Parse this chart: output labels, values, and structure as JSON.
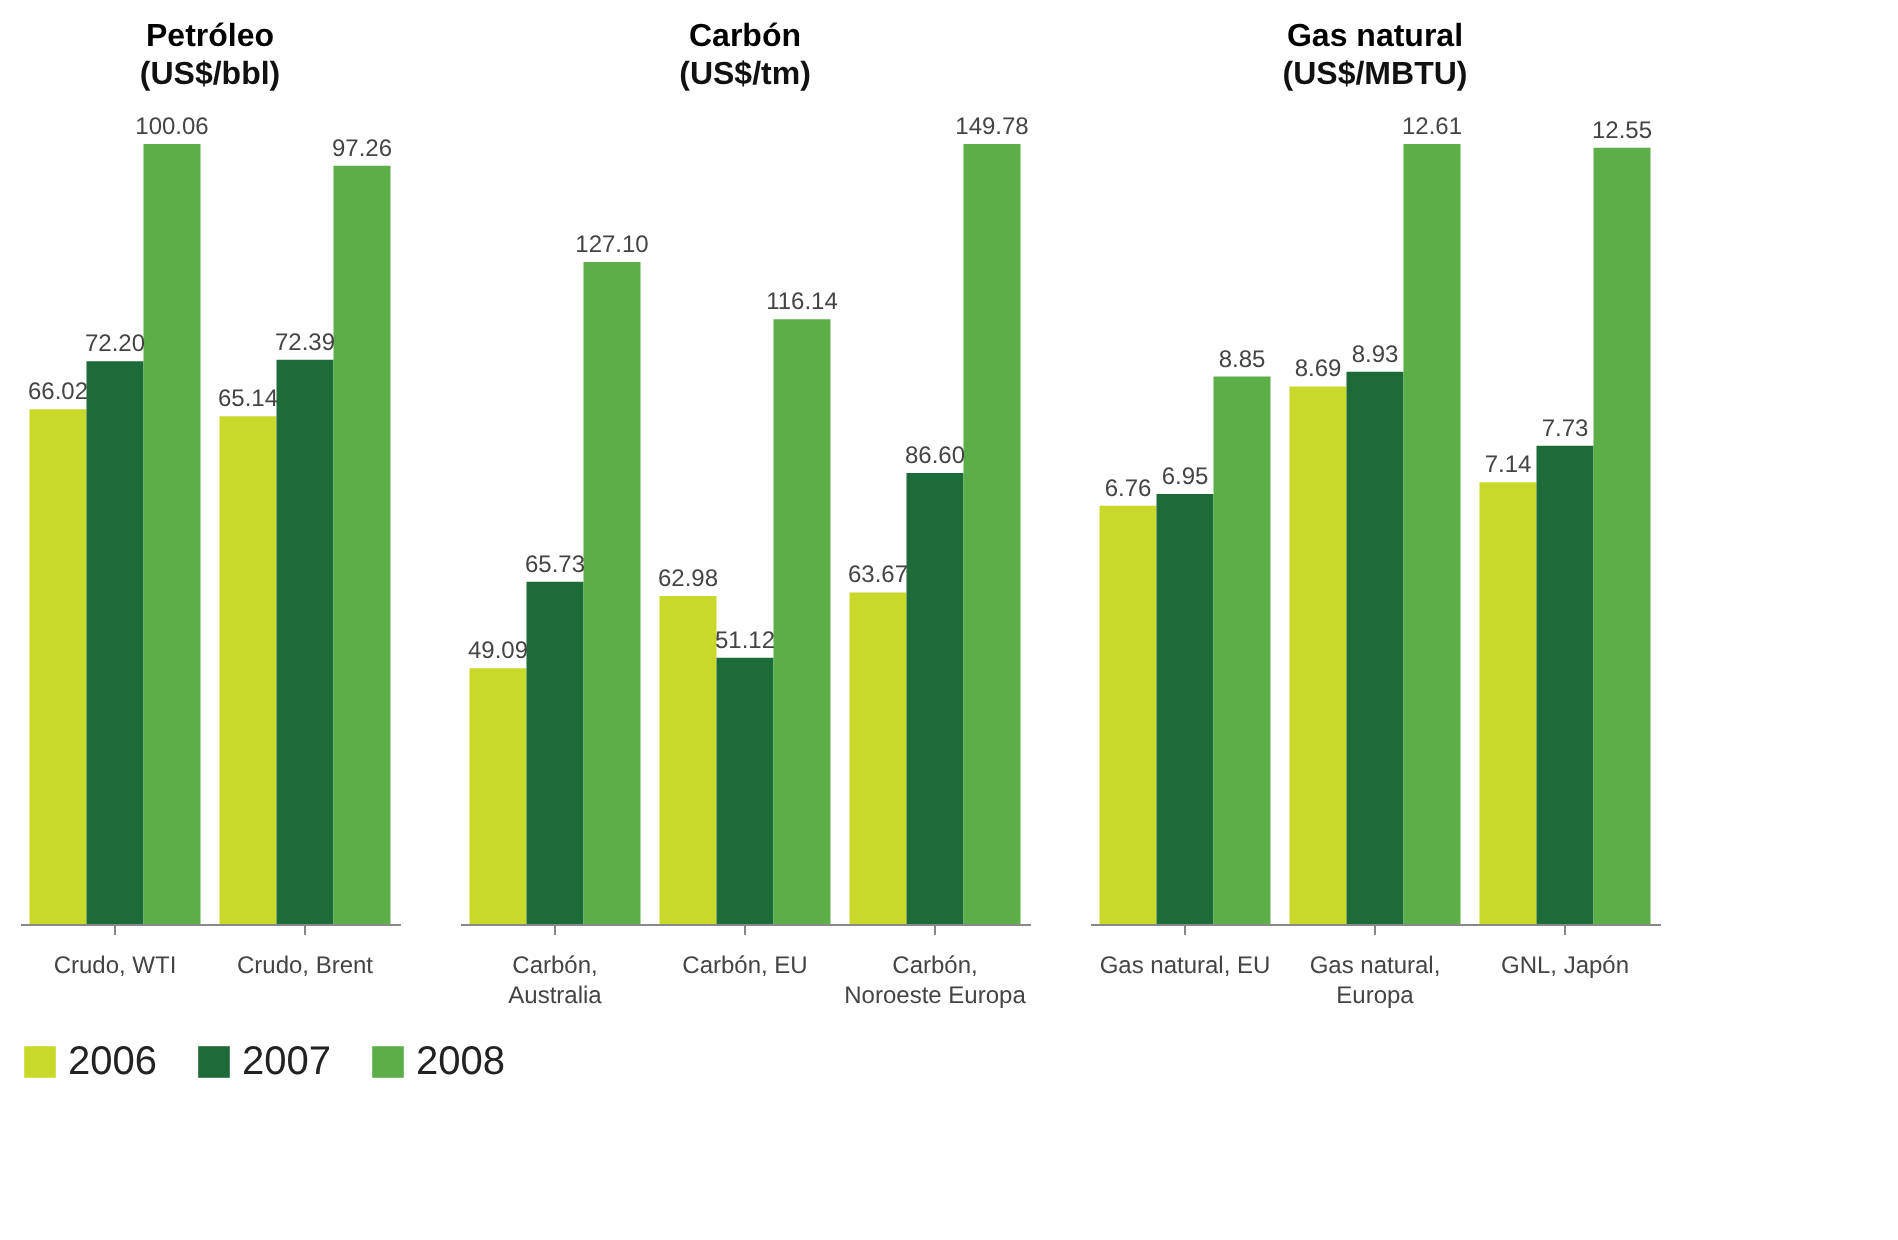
{
  "chart_data": [
    {
      "type": "bar",
      "title": "Petróleo",
      "subtitle": "(US$/bbl)",
      "categories": [
        "Crudo, WTI",
        "Crudo, Brent"
      ],
      "tick_labels": "x",
      "legend": "bottom",
      "series": [
        {
          "name": "2006",
          "color": "#c8d92c",
          "values": [
            66.02,
            65.14
          ],
          "value_labels": [
            "66.02",
            "65.14"
          ]
        },
        {
          "name": "2007",
          "color": "#1d6b38",
          "values": [
            72.2,
            72.39
          ],
          "value_labels": [
            "72.20",
            "72.39"
          ]
        },
        {
          "name": "2008",
          "color": "#5cae48",
          "values": [
            100.06,
            97.26
          ],
          "value_labels": [
            "100.06",
            "97.26"
          ]
        }
      ]
    },
    {
      "type": "bar",
      "title": "Carbón",
      "subtitle": "(US$/tm)",
      "categories": [
        "Carbón, Australia",
        "Carbón, EU",
        "Carbón, Noroeste Europa"
      ],
      "tick_labels": "x",
      "legend": "bottom",
      "series": [
        {
          "name": "2006",
          "color": "#c8d92c",
          "values": [
            49.09,
            62.98,
            63.67
          ],
          "value_labels": [
            "49.09",
            "62.98",
            "63.67"
          ]
        },
        {
          "name": "2007",
          "color": "#1d6b38",
          "values": [
            65.73,
            51.12,
            86.6
          ],
          "value_labels": [
            "65.73",
            "51.12",
            "86.60"
          ]
        },
        {
          "name": "2008",
          "color": "#5cae48",
          "values": [
            127.1,
            116.14,
            149.78
          ],
          "value_labels": [
            "127.10",
            "116.14",
            "149.78"
          ]
        }
      ]
    },
    {
      "type": "bar",
      "title": "Gas natural",
      "subtitle": "(US$/MBTU)",
      "categories": [
        "Gas natural, EU",
        "Gas natural, Europa",
        "GNL, Japón"
      ],
      "tick_labels": "x",
      "legend": "bottom",
      "series": [
        {
          "name": "2006",
          "color": "#c8d92c",
          "values": [
            6.76,
            8.69,
            7.14
          ],
          "value_labels": [
            "6.76",
            "8.69",
            "7.14"
          ]
        },
        {
          "name": "2007",
          "color": "#1d6b38",
          "values": [
            6.95,
            8.93,
            7.73
          ],
          "value_labels": [
            "6.95",
            "8.93",
            "7.73"
          ]
        },
        {
          "name": "2008",
          "color": "#5cae48",
          "values": [
            8.85,
            12.61,
            12.55
          ],
          "value_labels": [
            "8.85",
            "12.61",
            "12.55"
          ]
        }
      ]
    }
  ]
}
